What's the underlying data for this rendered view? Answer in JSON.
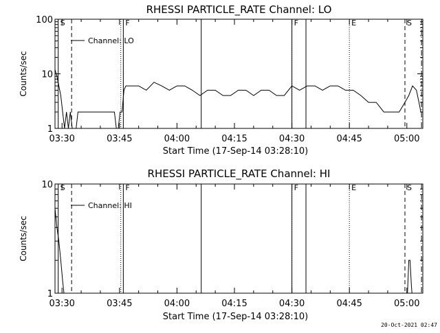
{
  "footer": {
    "timestamp": "20-Oct-2021 02:47"
  },
  "chart_data": [
    {
      "type": "line",
      "title": "RHESSI PARTICLE_RATE Channel: LO",
      "xlabel": "Start Time (17-Sep-14 03:28:10)",
      "ylabel": "Counts/sec",
      "yscale": "log",
      "ylim": [
        1,
        100
      ],
      "xlim": [
        "03:28:10",
        "05:04:10"
      ],
      "x_ticks": [
        "03:30",
        "03:45",
        "04:00",
        "04:15",
        "04:30",
        "04:45",
        "05:00"
      ],
      "y_ticks": [
        "1",
        "10",
        "100"
      ],
      "legend": {
        "entries": [
          "Channel: LO"
        ],
        "placement": "top-left"
      },
      "markers": [
        {
          "label": "S",
          "time": "03:29:00",
          "style": "solid"
        },
        {
          "label": "",
          "time": "03:32:30",
          "style": "dashed"
        },
        {
          "label": "",
          "time": "03:45:20",
          "style": "dotted"
        },
        {
          "label": "F",
          "time": "03:46:00",
          "style": "solid"
        },
        {
          "label": "",
          "time": "04:06:20",
          "style": "solid"
        },
        {
          "label": "F",
          "time": "04:30:00",
          "style": "dotted"
        },
        {
          "label": "",
          "time": "04:30:00",
          "style": "solid"
        },
        {
          "label": "",
          "time": "04:33:40",
          "style": "solid"
        },
        {
          "label": "E",
          "time": "04:45:00",
          "style": "dotted"
        },
        {
          "label": "S",
          "time": "04:59:30",
          "style": "dashed"
        },
        {
          "label": "",
          "time": "05:03:50",
          "style": "dashdot"
        }
      ],
      "series": [
        {
          "name": "Channel: LO",
          "x": [
            "03:28:10",
            "03:28:40",
            "03:29:10",
            "03:29:40",
            "03:30:10",
            "03:30:40",
            "03:31:10",
            "03:31:40",
            "03:32:10",
            "03:32:40",
            "03:33:10",
            "03:33:40",
            "03:34:10",
            "03:35:00",
            "03:36:00",
            "03:38:00",
            "03:40:00",
            "03:42:00",
            "03:43:40",
            "03:44:10",
            "03:44:40",
            "03:45:10",
            "03:45:40",
            "03:46:10",
            "03:46:40",
            "03:48:00",
            "03:50:00",
            "03:52:00",
            "03:54:00",
            "03:56:00",
            "03:58:00",
            "04:00:00",
            "04:02:00",
            "04:04:00",
            "04:06:00",
            "04:08:00",
            "04:10:00",
            "04:12:00",
            "04:14:00",
            "04:16:00",
            "04:18:00",
            "04:20:00",
            "04:22:00",
            "04:24:00",
            "04:26:00",
            "04:28:00",
            "04:30:00",
            "04:32:00",
            "04:34:00",
            "04:36:00",
            "04:38:00",
            "04:40:00",
            "04:42:00",
            "04:44:00",
            "04:46:00",
            "04:48:00",
            "04:50:00",
            "04:52:00",
            "04:54:00",
            "04:56:00",
            "04:58:00",
            "04:59:30",
            "05:00:30",
            "05:01:30",
            "05:02:30",
            "05:03:10",
            "05:03:40"
          ],
          "values": [
            12,
            9,
            6,
            4,
            2,
            1,
            2,
            1,
            2,
            1,
            1,
            1,
            2,
            2,
            2,
            2,
            2,
            2,
            2,
            1,
            1,
            2,
            2,
            5,
            6,
            6,
            6,
            5,
            7,
            6,
            5,
            6,
            6,
            5,
            4,
            5,
            5,
            4,
            4,
            5,
            5,
            4,
            5,
            5,
            4,
            4,
            6,
            5,
            6,
            6,
            5,
            6,
            6,
            5,
            5,
            4,
            3,
            3,
            2,
            2,
            2,
            3,
            4,
            6,
            5,
            3,
            2
          ]
        }
      ]
    },
    {
      "type": "line",
      "title": "RHESSI PARTICLE_RATE Channel: HI",
      "xlabel": "Start Time (17-Sep-14 03:28:10)",
      "ylabel": "Counts/sec",
      "yscale": "log",
      "ylim": [
        1,
        10
      ],
      "xlim": [
        "03:28:10",
        "05:04:10"
      ],
      "x_ticks": [
        "03:30",
        "03:45",
        "04:00",
        "04:15",
        "04:30",
        "04:45",
        "05:00"
      ],
      "y_ticks": [
        "1",
        "10"
      ],
      "legend": {
        "entries": [
          "Channel: HI"
        ],
        "placement": "top-left"
      },
      "markers": [
        {
          "label": "S",
          "time": "03:29:00",
          "style": "solid"
        },
        {
          "label": "",
          "time": "03:32:30",
          "style": "dashed"
        },
        {
          "label": "",
          "time": "03:45:20",
          "style": "dotted"
        },
        {
          "label": "F",
          "time": "03:46:00",
          "style": "solid"
        },
        {
          "label": "",
          "time": "04:06:20",
          "style": "solid"
        },
        {
          "label": "F",
          "time": "04:30:00",
          "style": "dotted"
        },
        {
          "label": "",
          "time": "04:30:00",
          "style": "solid"
        },
        {
          "label": "",
          "time": "04:33:40",
          "style": "solid"
        },
        {
          "label": "E",
          "time": "04:45:00",
          "style": "dotted"
        },
        {
          "label": "S",
          "time": "04:59:30",
          "style": "dashed"
        },
        {
          "label": "",
          "time": "05:03:50",
          "style": "dashdot"
        }
      ],
      "series": [
        {
          "name": "Channel: HI",
          "x": [
            "03:28:10",
            "03:28:40",
            "03:29:10",
            "03:29:40",
            "03:30:10",
            "03:30:30",
            "05:00:10",
            "05:00:30",
            "05:00:50",
            "05:01:10",
            "05:01:20"
          ],
          "values": [
            6,
            4,
            3,
            2,
            1.3,
            1,
            1,
            2,
            2,
            1.2,
            1
          ]
        }
      ]
    }
  ]
}
